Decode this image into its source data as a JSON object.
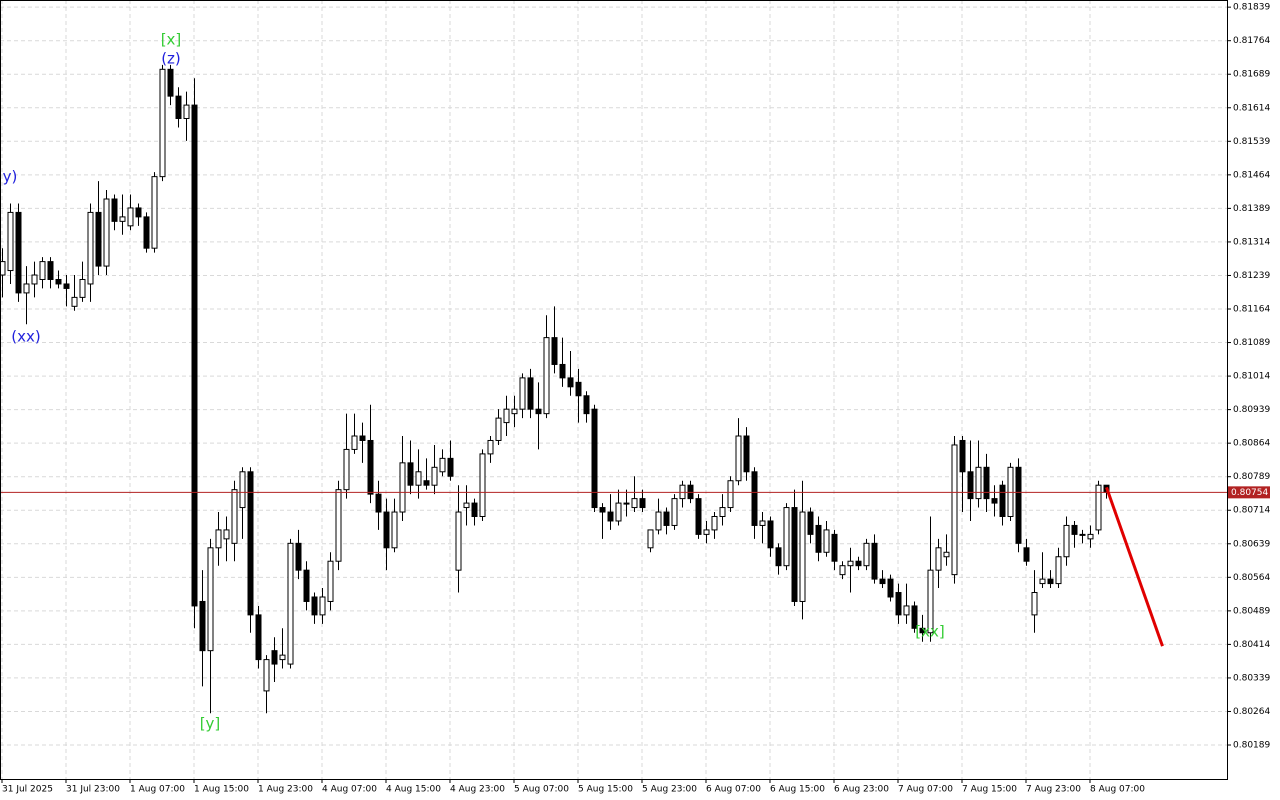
{
  "chart_data": {
    "type": "candlestick",
    "categories": [
      "31 Jul 2025",
      null,
      null,
      null,
      null,
      null,
      null,
      null,
      "31 Jul 23:00",
      null,
      null,
      null,
      null,
      null,
      null,
      null,
      "1 Aug 07:00",
      null,
      null,
      null,
      null,
      null,
      null,
      null,
      "1 Aug 15:00",
      null,
      null,
      null,
      null,
      null,
      null,
      null,
      "1 Aug 23:00",
      null,
      null,
      null,
      null,
      null,
      null,
      null,
      "4 Aug 07:00",
      null,
      null,
      null,
      null,
      null,
      null,
      null,
      "4 Aug 15:00",
      null,
      null,
      null,
      null,
      null,
      null,
      null,
      "4 Aug 23:00",
      null,
      null,
      null,
      null,
      null,
      null,
      null,
      "5 Aug 07:00",
      null,
      null,
      null,
      null,
      null,
      null,
      null,
      "5 Aug 15:00",
      null,
      null,
      null,
      null,
      null,
      null,
      null,
      "5 Aug 23:00",
      null,
      null,
      null,
      null,
      null,
      null,
      null,
      "6 Aug 07:00",
      null,
      null,
      null,
      null,
      null,
      null,
      null,
      "6 Aug 15:00",
      null,
      null,
      null,
      null,
      null,
      null,
      null,
      "6 Aug 23:00",
      null,
      null,
      null,
      null,
      null,
      null,
      null,
      "7 Aug 07:00",
      null,
      null,
      null,
      null,
      null,
      null,
      null,
      "7 Aug 15:00",
      null,
      null,
      null,
      null,
      null,
      null,
      null,
      "7 Aug 23:00",
      null,
      null,
      null,
      null,
      null,
      null,
      null,
      "8 Aug 07:00",
      null,
      null
    ],
    "open": [
      0.8124,
      0.8125,
      0.8138,
      0.812,
      0.8122,
      0.8123,
      0.8127,
      0.8123,
      0.8122,
      0.8117,
      0.8119,
      0.8122,
      0.8138,
      0.8126,
      0.8141,
      0.8136,
      0.8135,
      0.8139,
      0.8137,
      0.813,
      0.8146,
      0.817,
      0.8164,
      0.8159,
      0.8162,
      0.8051,
      0.804,
      0.8063,
      0.8065,
      0.8064,
      0.8072,
      0.808,
      0.8048,
      0.8031,
      0.804,
      0.8038,
      0.8037,
      0.8064,
      0.8058,
      0.8052,
      0.8048,
      0.8051,
      0.806,
      0.8076,
      0.8085,
      0.8088,
      0.8087,
      0.8075,
      0.8071,
      0.8063,
      0.8071,
      0.8082,
      0.8077,
      0.8078,
      0.8077,
      0.808,
      0.8083,
      0.8058,
      0.8072,
      0.8073,
      0.807,
      0.8084,
      0.8087,
      0.8091,
      0.8093,
      0.8094,
      0.8101,
      0.8094,
      0.8093,
      0.811,
      0.8104,
      0.8101,
      0.81,
      0.8097,
      0.8094,
      0.8072,
      0.8071,
      0.8069,
      0.8073,
      0.8072,
      0.8074,
      0.8063,
      0.8067,
      0.8071,
      0.8068,
      0.8074,
      0.8077,
      0.8074,
      0.8066,
      0.8067,
      0.807,
      0.8072,
      0.8078,
      0.8088,
      0.808,
      0.8068,
      0.8069,
      0.8063,
      0.8059,
      0.8072,
      0.8051,
      0.8071,
      0.8068,
      0.8062,
      0.8066,
      0.8057,
      0.8059,
      0.806,
      0.8059,
      0.8064,
      0.8056,
      0.8056,
      0.8053,
      0.8048,
      0.805,
      0.8045,
      0.8044,
      0.8058,
      0.8061,
      0.8057,
      0.8087,
      0.808,
      0.8074,
      0.8081,
      0.8074,
      0.8077,
      0.807,
      0.8081,
      0.8063,
      0.8048,
      0.8055,
      0.8056,
      0.8055,
      0.8061,
      0.8068,
      0.8066,
      0.8065,
      0.8067,
      0.8077
    ],
    "high": [
      0.813,
      0.814,
      0.814,
      0.8126,
      0.8127,
      0.8128,
      0.8128,
      0.8125,
      0.8124,
      0.8124,
      0.8127,
      0.814,
      0.8145,
      0.8143,
      0.8142,
      0.8142,
      0.8142,
      0.814,
      0.8138,
      0.8147,
      0.8171,
      0.8171,
      0.8166,
      0.8165,
      0.8168,
      0.8058,
      0.8065,
      0.8071,
      0.807,
      0.8078,
      0.8081,
      0.8081,
      0.805,
      0.8039,
      0.8043,
      0.8045,
      0.8065,
      0.8067,
      0.806,
      0.8053,
      0.8054,
      0.8062,
      0.8078,
      0.8093,
      0.8093,
      0.8091,
      0.8095,
      0.8078,
      0.8074,
      0.8074,
      0.8088,
      0.8087,
      0.8085,
      0.8083,
      0.8086,
      0.8085,
      0.8087,
      0.8077,
      0.8077,
      0.8074,
      0.8085,
      0.8088,
      0.8094,
      0.8097,
      0.8097,
      0.8102,
      0.8103,
      0.81,
      0.8115,
      0.8117,
      0.811,
      0.8107,
      0.8103,
      0.8098,
      0.8095,
      0.8073,
      0.8075,
      0.8076,
      0.8076,
      0.8079,
      0.8076,
      0.8067,
      0.8074,
      0.8072,
      0.8075,
      0.8078,
      0.8078,
      0.8075,
      0.8069,
      0.8071,
      0.8075,
      0.8079,
      0.8092,
      0.809,
      0.8081,
      0.8071,
      0.807,
      0.8064,
      0.8073,
      0.8076,
      0.8078,
      0.8072,
      0.807,
      0.8069,
      0.8067,
      0.806,
      0.8063,
      0.8061,
      0.8065,
      0.8066,
      0.8058,
      0.8057,
      0.8055,
      0.8055,
      0.8051,
      0.8048,
      0.807,
      0.8065,
      0.8066,
      0.8088,
      0.8088,
      0.8087,
      0.8087,
      0.8084,
      0.8077,
      0.8078,
      0.8082,
      0.8083,
      0.8065,
      0.8058,
      0.8062,
      0.8058,
      0.8063,
      0.807,
      0.8069,
      0.8067,
      0.8068,
      0.8078,
      0.8077
    ],
    "low": [
      0.8119,
      0.8122,
      0.8118,
      0.8113,
      0.8119,
      0.8121,
      0.8121,
      0.8121,
      0.8117,
      0.8116,
      0.8118,
      0.8118,
      0.8124,
      0.8124,
      0.8134,
      0.8133,
      0.8134,
      0.8135,
      0.8129,
      0.8129,
      0.8145,
      0.8162,
      0.8157,
      0.8154,
      0.8045,
      0.8032,
      0.8026,
      0.8059,
      0.806,
      0.806,
      0.8065,
      0.8044,
      0.8036,
      0.8026,
      0.8033,
      0.8036,
      0.8036,
      0.8056,
      0.8049,
      0.8046,
      0.8046,
      0.8049,
      0.8058,
      0.8074,
      0.8084,
      0.8082,
      0.8073,
      0.8067,
      0.8058,
      0.8062,
      0.8069,
      0.8075,
      0.8074,
      0.8076,
      0.8075,
      0.8079,
      0.8078,
      0.8053,
      0.8068,
      0.8068,
      0.8069,
      0.8082,
      0.8086,
      0.8088,
      0.809,
      0.8092,
      0.8092,
      0.8085,
      0.8092,
      0.8102,
      0.8099,
      0.8097,
      0.8091,
      0.8091,
      0.8071,
      0.8065,
      0.8067,
      0.8068,
      0.807,
      0.8071,
      0.8071,
      0.8062,
      0.8066,
      0.8066,
      0.8067,
      0.8072,
      0.8073,
      0.8065,
      0.8064,
      0.8065,
      0.8068,
      0.8071,
      0.8077,
      0.8078,
      0.8065,
      0.8064,
      0.8061,
      0.8057,
      0.8058,
      0.805,
      0.8047,
      0.8064,
      0.806,
      0.8061,
      0.8058,
      0.8056,
      0.8053,
      0.8058,
      0.8058,
      0.8055,
      0.8054,
      0.8051,
      0.8046,
      0.8046,
      0.8044,
      0.8042,
      0.8042,
      0.8054,
      0.8059,
      0.8055,
      0.8071,
      0.8069,
      0.8072,
      0.8071,
      0.807,
      0.8068,
      0.8069,
      0.8062,
      0.8059,
      0.8044,
      0.8054,
      0.8054,
      0.8054,
      0.8059,
      0.8063,
      0.8064,
      0.8063,
      0.8066,
      0.8074
    ],
    "close": [
      0.8127,
      0.8138,
      0.812,
      0.8122,
      0.8124,
      0.8127,
      0.8123,
      0.8122,
      0.8121,
      0.8119,
      0.8123,
      0.8138,
      0.8126,
      0.8141,
      0.8136,
      0.8137,
      0.8139,
      0.8137,
      0.813,
      0.8146,
      0.817,
      0.8164,
      0.8159,
      0.8162,
      0.805,
      0.804,
      0.8063,
      0.8067,
      0.8067,
      0.8076,
      0.808,
      0.8048,
      0.8038,
      0.8038,
      0.8037,
      0.8039,
      0.8064,
      0.8058,
      0.8051,
      0.8048,
      0.8052,
      0.806,
      0.8076,
      0.8085,
      0.8088,
      0.8087,
      0.8075,
      0.8071,
      0.8063,
      0.8071,
      0.8082,
      0.8077,
      0.808,
      0.8077,
      0.8081,
      0.8083,
      0.8079,
      0.8071,
      0.8073,
      0.807,
      0.8084,
      0.8087,
      0.8092,
      0.8094,
      0.8094,
      0.8101,
      0.8094,
      0.8093,
      0.811,
      0.8104,
      0.8101,
      0.8099,
      0.8097,
      0.8093,
      0.8072,
      0.8071,
      0.8069,
      0.8073,
      0.8073,
      0.8074,
      0.8072,
      0.8067,
      0.8071,
      0.8068,
      0.8074,
      0.8077,
      0.8074,
      0.8066,
      0.8067,
      0.807,
      0.8072,
      0.8078,
      0.8088,
      0.808,
      0.8068,
      0.8069,
      0.8063,
      0.8059,
      0.8072,
      0.8051,
      0.8071,
      0.8066,
      0.8062,
      0.8067,
      0.806,
      0.8059,
      0.806,
      0.8059,
      0.8064,
      0.8056,
      0.8055,
      0.8052,
      0.8048,
      0.805,
      0.8045,
      0.8044,
      0.8058,
      0.8063,
      0.8062,
      0.8086,
      0.808,
      0.8074,
      0.8081,
      0.8074,
      0.8073,
      0.807,
      0.8081,
      0.8064,
      0.806,
      0.8053,
      0.8056,
      0.8055,
      0.8061,
      0.8068,
      0.8066,
      0.8066,
      0.8066,
      0.8077,
      0.80754
    ],
    "bull_color": "#ffffff",
    "bear_color": "#000000",
    "ylim": [
      0.80113,
      0.81855
    ],
    "yticks": [
      0.81839,
      0.81764,
      0.81689,
      0.81614,
      0.81539,
      0.81464,
      0.81389,
      0.81314,
      0.81239,
      0.81164,
      0.81089,
      0.81014,
      0.80939,
      0.80864,
      0.80789,
      0.80714,
      0.80639,
      0.80564,
      0.80489,
      0.80414,
      0.80339,
      0.80264,
      0.80189
    ],
    "grid": true,
    "current_price": {
      "value": 0.80754,
      "color": "#b22222"
    },
    "forecast": {
      "color": "#e00000",
      "x": [
        138,
        145
      ],
      "values": [
        0.80765,
        0.8041
      ]
    },
    "annotations": [
      {
        "text": "[x]",
        "color": "#33cc33"
      },
      {
        "text": "(z)",
        "color": "#2222dd"
      },
      {
        "text": "y)",
        "color": "#2222dd"
      },
      {
        "text": "(xx)",
        "color": "#2222dd"
      },
      {
        "text": "[y]",
        "color": "#33cc33"
      },
      {
        "text": "[xx]",
        "color": "#33cc33"
      }
    ]
  }
}
